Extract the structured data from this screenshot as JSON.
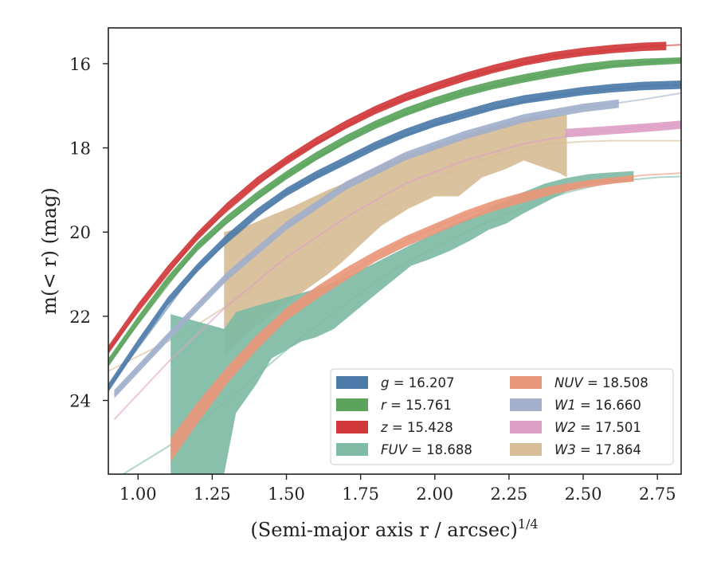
{
  "chart_data": {
    "type": "area",
    "xlabel": "(Semi-major axis r / arcsec)",
    "xlabel_sup": "1/4",
    "ylabel": "m(< r) (mag)",
    "xlim": [
      0.9,
      2.83
    ],
    "ylim": [
      25.75,
      15.15
    ],
    "y_inverted": true,
    "grid": false,
    "legend_position": "lower-right",
    "x_ticks": [
      1.0,
      1.25,
      1.5,
      1.75,
      2.0,
      2.25,
      2.5,
      2.75
    ],
    "x_tick_labels": [
      "1.00",
      "1.25",
      "1.50",
      "1.75",
      "2.00",
      "2.25",
      "2.50",
      "2.75"
    ],
    "y_ticks": [
      16,
      18,
      20,
      22,
      24
    ],
    "y_tick_labels": [
      "16",
      "18",
      "20",
      "22",
      "24"
    ],
    "legend": [
      {
        "key": "g",
        "label": "g",
        "value": "16.207"
      },
      {
        "key": "r",
        "label": "r",
        "value": "15.761"
      },
      {
        "key": "z",
        "label": "z",
        "value": "15.428"
      },
      {
        "key": "FUV",
        "label": "FUV",
        "value": "18.688"
      },
      {
        "key": "NUV",
        "label": "NUV",
        "value": "18.508"
      },
      {
        "key": "W1",
        "label": "W1",
        "value": "16.660"
      },
      {
        "key": "W2",
        "label": "W2",
        "value": "17.501"
      },
      {
        "key": "W3",
        "label": "W3",
        "value": "17.864"
      }
    ],
    "series": [
      {
        "key": "W3",
        "color": "#d7bd96",
        "band_x": [
          1.29,
          1.37,
          1.45,
          1.52,
          1.58,
          1.64,
          1.69,
          1.75,
          1.82,
          1.91,
          2.0,
          2.08,
          2.16,
          2.24,
          2.3,
          2.36,
          2.42,
          2.445
        ],
        "band_lower": [
          22.95,
          22.4,
          21.95,
          21.6,
          21.3,
          21.0,
          20.7,
          20.3,
          19.85,
          19.45,
          19.15,
          19.15,
          18.7,
          18.5,
          18.3,
          18.45,
          18.6,
          18.7
        ],
        "band_upper": [
          20.0,
          19.85,
          19.6,
          19.4,
          19.2,
          19.0,
          18.85,
          18.65,
          18.4,
          18.15,
          17.95,
          17.8,
          17.55,
          17.4,
          17.3,
          17.25,
          17.22,
          17.2
        ],
        "curve_x": [
          0.9,
          1.0,
          1.1,
          1.2,
          1.3,
          1.4,
          1.5,
          1.6,
          1.7,
          1.8,
          1.9,
          2.0,
          2.1,
          2.2,
          2.3,
          2.4,
          2.5,
          2.6,
          2.7,
          2.83
        ],
        "curve_y": [
          23.3,
          22.95,
          22.6,
          22.2,
          21.75,
          21.3,
          20.85,
          20.4,
          19.95,
          19.5,
          19.1,
          18.75,
          18.45,
          18.2,
          18.0,
          17.9,
          17.85,
          17.83,
          17.83,
          17.83
        ]
      },
      {
        "key": "FUV",
        "color": "#7fbba5",
        "band_x": [
          1.11,
          1.29,
          1.29,
          1.33,
          1.4,
          1.45,
          1.5,
          1.55,
          1.6,
          1.66,
          1.72,
          1.78,
          1.85,
          1.92,
          1.98,
          2.05,
          2.12,
          2.18,
          2.24,
          2.3,
          2.37,
          2.44,
          2.52,
          2.6,
          2.67
        ],
        "band_lower": [
          25.75,
          25.75,
          25.75,
          24.3,
          23.6,
          23.0,
          22.8,
          22.6,
          22.5,
          22.3,
          21.95,
          21.6,
          21.2,
          20.8,
          20.65,
          20.45,
          20.2,
          19.95,
          19.8,
          19.55,
          19.3,
          19.05,
          18.88,
          18.82,
          18.8
        ],
        "band_upper": [
          21.95,
          22.3,
          22.3,
          21.9,
          21.75,
          21.65,
          21.55,
          21.45,
          21.35,
          21.2,
          21.0,
          20.8,
          20.55,
          20.3,
          20.1,
          19.85,
          19.65,
          19.45,
          19.25,
          19.05,
          18.85,
          18.72,
          18.62,
          18.58,
          18.55
        ],
        "curve_x": [
          0.95,
          1.1,
          1.25,
          1.4,
          1.55,
          1.7,
          1.85,
          2.0,
          2.15,
          2.3,
          2.45,
          2.6,
          2.75,
          2.83
        ],
        "curve_y": [
          25.75,
          25.1,
          24.3,
          23.4,
          22.5,
          21.7,
          20.95,
          20.35,
          19.85,
          19.4,
          19.05,
          18.8,
          18.7,
          18.68
        ]
      },
      {
        "key": "NUV",
        "color": "#e9977a",
        "band_x": [
          1.11,
          1.2,
          1.3,
          1.4,
          1.5,
          1.6,
          1.7,
          1.8,
          1.9,
          2.0,
          2.1,
          2.2,
          2.3,
          2.4,
          2.5,
          2.6,
          2.67
        ],
        "band_lower": [
          25.45,
          24.55,
          23.6,
          22.8,
          22.1,
          21.6,
          21.15,
          20.7,
          20.35,
          20.05,
          19.75,
          19.5,
          19.3,
          19.1,
          18.95,
          18.85,
          18.8
        ],
        "band_upper": [
          24.9,
          24.05,
          23.2,
          22.45,
          21.8,
          21.3,
          20.85,
          20.45,
          20.1,
          19.8,
          19.5,
          19.25,
          19.05,
          18.9,
          18.78,
          18.7,
          18.65
        ],
        "curve_x": [
          1.11,
          1.3,
          1.5,
          1.7,
          1.9,
          2.1,
          2.3,
          2.5,
          2.7,
          2.83
        ],
        "curve_y": [
          25.2,
          23.4,
          21.95,
          21.0,
          20.2,
          19.6,
          19.15,
          18.85,
          18.65,
          18.6
        ]
      },
      {
        "key": "W1",
        "color": "#a2b0cb",
        "band_x": [
          0.92,
          1.1,
          1.3,
          1.5,
          1.7,
          1.9,
          2.1,
          2.3,
          2.5,
          2.62
        ],
        "band_lower": [
          23.95,
          22.6,
          21.15,
          19.95,
          19.0,
          18.3,
          17.8,
          17.4,
          17.15,
          17.05
        ],
        "band_upper": [
          23.75,
          22.4,
          20.95,
          19.75,
          18.8,
          18.1,
          17.6,
          17.2,
          16.95,
          16.85
        ],
        "curve_x": [
          0.92,
          1.1,
          1.3,
          1.5,
          1.7,
          1.9,
          2.1,
          2.3,
          2.5,
          2.7,
          2.83
        ],
        "curve_y": [
          23.85,
          22.5,
          21.05,
          19.85,
          18.9,
          18.2,
          17.7,
          17.3,
          17.05,
          16.85,
          16.7
        ]
      },
      {
        "key": "W2",
        "color": "#dd9fc6",
        "band_x": [
          2.44,
          2.55,
          2.65,
          2.75,
          2.83
        ],
        "band_lower": [
          17.75,
          17.7,
          17.65,
          17.6,
          17.55
        ],
        "band_upper": [
          17.55,
          17.5,
          17.45,
          17.4,
          17.35
        ],
        "curve_x": [
          0.92,
          1.1,
          1.3,
          1.5,
          1.7,
          1.9,
          2.1,
          2.3,
          2.5,
          2.7,
          2.83
        ],
        "curve_y": [
          24.45,
          23.1,
          21.75,
          20.6,
          19.65,
          18.85,
          18.3,
          17.9,
          17.65,
          17.5,
          17.45
        ]
      },
      {
        "key": "g",
        "color": "#4c7ba9",
        "band_x": [
          0.9,
          1.0,
          1.1,
          1.2,
          1.3,
          1.4,
          1.5,
          1.6,
          1.7,
          1.8,
          1.9,
          2.0,
          2.1,
          2.2,
          2.3,
          2.4,
          2.5,
          2.6,
          2.7,
          2.83
        ],
        "band_lower": [
          23.8,
          22.75,
          21.75,
          20.95,
          20.25,
          19.65,
          19.15,
          18.75,
          18.4,
          18.05,
          17.75,
          17.5,
          17.3,
          17.1,
          16.95,
          16.85,
          16.75,
          16.68,
          16.63,
          16.6
        ],
        "band_upper": [
          23.6,
          22.55,
          21.55,
          20.75,
          20.05,
          19.45,
          18.95,
          18.55,
          18.2,
          17.85,
          17.55,
          17.3,
          17.1,
          16.9,
          16.75,
          16.65,
          16.55,
          16.48,
          16.43,
          16.4
        ],
        "curve_x": [
          0.9,
          1.2,
          1.5,
          1.8,
          2.1,
          2.4,
          2.7,
          2.83
        ],
        "curve_y": [
          23.7,
          20.85,
          19.05,
          17.95,
          17.2,
          16.75,
          16.53,
          16.5
        ]
      },
      {
        "key": "r",
        "color": "#5aa45c",
        "band_x": [
          0.9,
          1.0,
          1.1,
          1.2,
          1.3,
          1.4,
          1.5,
          1.6,
          1.7,
          1.8,
          1.9,
          2.0,
          2.1,
          2.2,
          2.3,
          2.4,
          2.5,
          2.6,
          2.7,
          2.83
        ],
        "band_lower": [
          23.2,
          22.2,
          21.25,
          20.45,
          19.8,
          19.25,
          18.75,
          18.3,
          17.9,
          17.55,
          17.25,
          17.0,
          16.78,
          16.6,
          16.45,
          16.32,
          16.2,
          16.1,
          16.05,
          16.0
        ],
        "band_upper": [
          23.0,
          22.0,
          21.05,
          20.25,
          19.6,
          19.05,
          18.55,
          18.1,
          17.7,
          17.35,
          17.05,
          16.8,
          16.58,
          16.4,
          16.25,
          16.12,
          16.0,
          15.92,
          15.88,
          15.85
        ],
        "curve_x": [
          0.9,
          1.2,
          1.5,
          1.8,
          2.1,
          2.4,
          2.7,
          2.83
        ],
        "curve_y": [
          23.1,
          20.35,
          18.65,
          17.45,
          16.68,
          16.22,
          15.97,
          15.92
        ]
      },
      {
        "key": "z",
        "color": "#d0383a",
        "band_x": [
          0.9,
          1.0,
          1.1,
          1.2,
          1.3,
          1.4,
          1.5,
          1.6,
          1.7,
          1.8,
          1.9,
          2.0,
          2.1,
          2.2,
          2.3,
          2.4,
          2.5,
          2.6,
          2.7,
          2.78
        ],
        "band_lower": [
          22.9,
          21.9,
          21.0,
          20.2,
          19.5,
          18.9,
          18.4,
          17.95,
          17.55,
          17.2,
          16.9,
          16.65,
          16.42,
          16.22,
          16.05,
          15.92,
          15.82,
          15.75,
          15.7,
          15.68
        ],
        "band_upper": [
          22.7,
          21.7,
          20.8,
          20.0,
          19.3,
          18.7,
          18.2,
          17.75,
          17.35,
          17.0,
          16.7,
          16.45,
          16.22,
          16.02,
          15.85,
          15.72,
          15.62,
          15.55,
          15.5,
          15.48
        ],
        "curve_x": [
          0.9,
          1.2,
          1.5,
          1.8,
          2.1,
          2.4,
          2.7,
          2.83
        ],
        "curve_y": [
          22.8,
          20.1,
          18.3,
          17.1,
          16.32,
          15.82,
          15.6,
          15.55
        ]
      }
    ]
  }
}
